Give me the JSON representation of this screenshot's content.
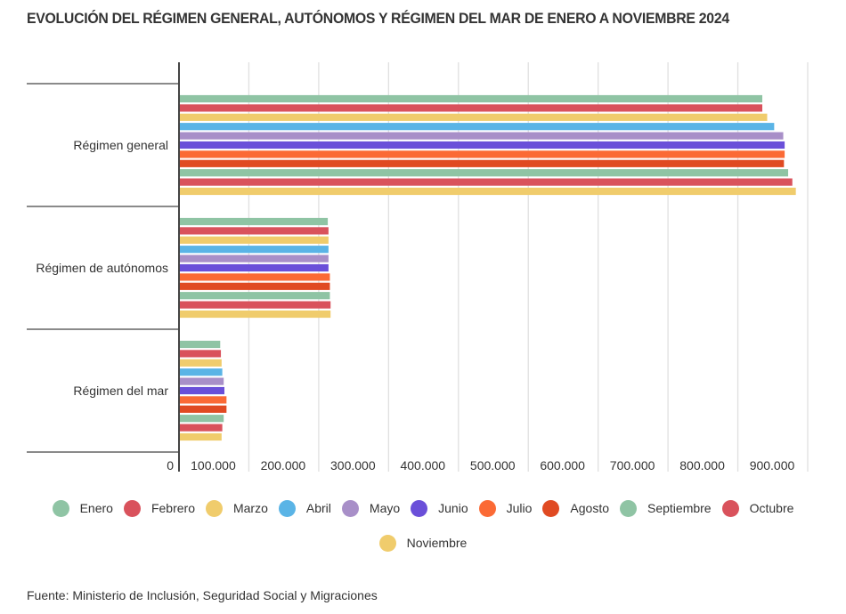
{
  "chart_data": {
    "type": "bar",
    "orientation": "horizontal",
    "title": "EVOLUCIÓN DEL RÉGIMEN GENERAL, AUTÓNOMOS Y RÉGIMEN DEL MAR DE ENERO A NOVIEMBRE 2024",
    "categories": [
      "Régimen general",
      "Régimen de autónomos",
      "Régimen del mar"
    ],
    "series": [
      {
        "name": "Enero",
        "color": "#8fc4a4",
        "values": [
          835000,
          213000,
          59000
        ]
      },
      {
        "name": "Febrero",
        "color": "#d9525c",
        "values": [
          835000,
          214000,
          60000
        ]
      },
      {
        "name": "Marzo",
        "color": "#f0cc6c",
        "values": [
          842000,
          214000,
          61000
        ]
      },
      {
        "name": "Abril",
        "color": "#5ab4e6",
        "values": [
          852000,
          214000,
          62000
        ]
      },
      {
        "name": "Mayo",
        "color": "#a88fc8",
        "values": [
          865000,
          214000,
          64000
        ]
      },
      {
        "name": "Junio",
        "color": "#6a4fd9",
        "values": [
          867000,
          214000,
          65000
        ]
      },
      {
        "name": "Julio",
        "color": "#fb6a35",
        "values": [
          867000,
          216000,
          68000
        ]
      },
      {
        "name": "Agosto",
        "color": "#e04a22",
        "values": [
          866000,
          216000,
          68000
        ]
      },
      {
        "name": "Septiembre",
        "color": "#8fc4a4",
        "values": [
          872000,
          216000,
          64000
        ]
      },
      {
        "name": "Octubre",
        "color": "#d9525c",
        "values": [
          878000,
          217000,
          62000
        ]
      },
      {
        "name": "Noviembre",
        "color": "#f0cc6c",
        "values": [
          883000,
          217000,
          61000
        ]
      }
    ],
    "xlim": [
      0,
      900000
    ],
    "xticks": [
      0,
      100000,
      200000,
      300000,
      400000,
      500000,
      600000,
      700000,
      800000,
      900000
    ],
    "xtick_labels": [
      "0",
      "100.000",
      "200.000",
      "300.000",
      "400.000",
      "500.000",
      "600.000",
      "700.000",
      "800.000",
      "900.000"
    ],
    "grid": true,
    "legend_position": "bottom",
    "xlabel": "",
    "ylabel": ""
  },
  "source": "Fuente: Ministerio de Inclusión, Seguridad Social y Migraciones"
}
